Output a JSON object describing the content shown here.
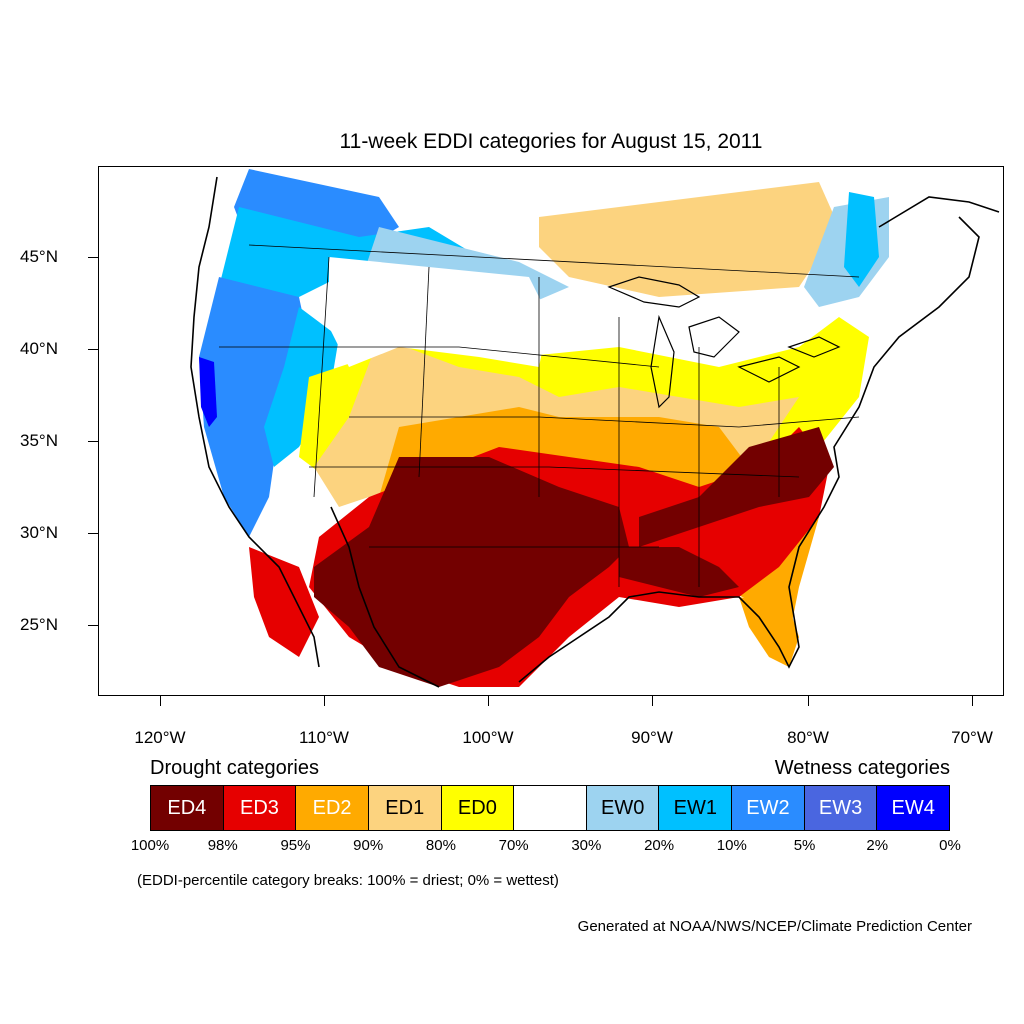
{
  "title": "11-week EDDI categories for August 15, 2011",
  "lat_labels": [
    "45°N",
    "40°N",
    "35°N",
    "30°N",
    "25°N"
  ],
  "lon_labels": [
    "120°W",
    "110°W",
    "100°W",
    "90°W",
    "80°W",
    "70°W"
  ],
  "legend": {
    "drought_heading": "Drought categories",
    "wetness_heading": "Wetness categories",
    "categories": [
      {
        "label": "ED4",
        "color": "#730000",
        "text_color": "#ffffff"
      },
      {
        "label": "ED3",
        "color": "#e60000",
        "text_color": "#ffffff"
      },
      {
        "label": "ED2",
        "color": "#ffaa00",
        "text_color": "#ffffff"
      },
      {
        "label": "ED1",
        "color": "#fcd37f",
        "text_color": "#000000"
      },
      {
        "label": "ED0",
        "color": "#ffff00",
        "text_color": "#000000"
      },
      {
        "label": "",
        "color": "#ffffff",
        "text_color": "#000000"
      },
      {
        "label": "EW0",
        "color": "#9dd3f0",
        "text_color": "#000000"
      },
      {
        "label": "EW1",
        "color": "#00c0ff",
        "text_color": "#000000"
      },
      {
        "label": "EW2",
        "color": "#2a8cff",
        "text_color": "#ffffff"
      },
      {
        "label": "EW3",
        "color": "#4a66e0",
        "text_color": "#ffffff"
      },
      {
        "label": "EW4",
        "color": "#0000ff",
        "text_color": "#ffffff"
      }
    ],
    "breaks": [
      "100%",
      "98%",
      "95%",
      "90%",
      "80%",
      "70%",
      "30%",
      "20%",
      "10%",
      "5%",
      "2%",
      "0%"
    ]
  },
  "note": "(EDDI-percentile category breaks: 100% = driest; 0% = wettest)",
  "credit": "Generated at NOAA/NWS/NCEP/Climate Prediction Center"
}
